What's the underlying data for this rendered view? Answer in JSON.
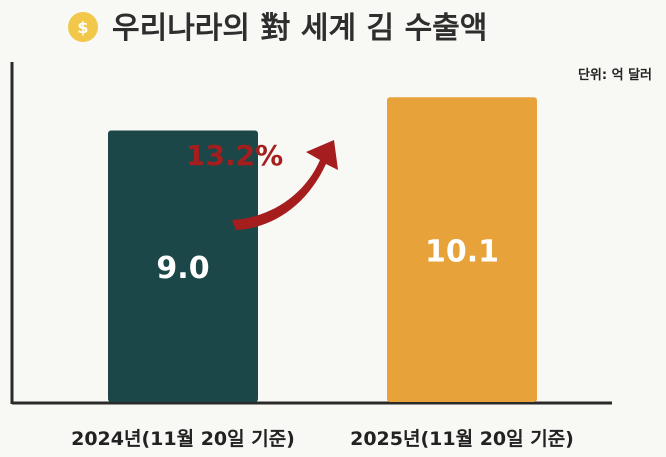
{
  "chart_data": {
    "type": "bar",
    "title": "우리나라의 對 세계 김 수출액",
    "unit_label": "단위: 억 달러",
    "categories": [
      "2024년(11월 20일 기준)",
      "2025년(11월 20일 기준)"
    ],
    "values": [
      9.0,
      10.1
    ],
    "value_labels": [
      "9.0",
      "10.1"
    ],
    "ylim": [
      0,
      11.6
    ],
    "grid": false,
    "bar_colors": [
      "#1c4748",
      "#e8a23a"
    ],
    "annotation": {
      "text": "13.2%",
      "color": "#a51d1d"
    }
  },
  "colors": {
    "axis": "#2a2a2a",
    "coin": "#f2c84b",
    "coin_symbol": "#ffffff"
  },
  "icons": {
    "title_icon": "dollar-coin-icon"
  }
}
